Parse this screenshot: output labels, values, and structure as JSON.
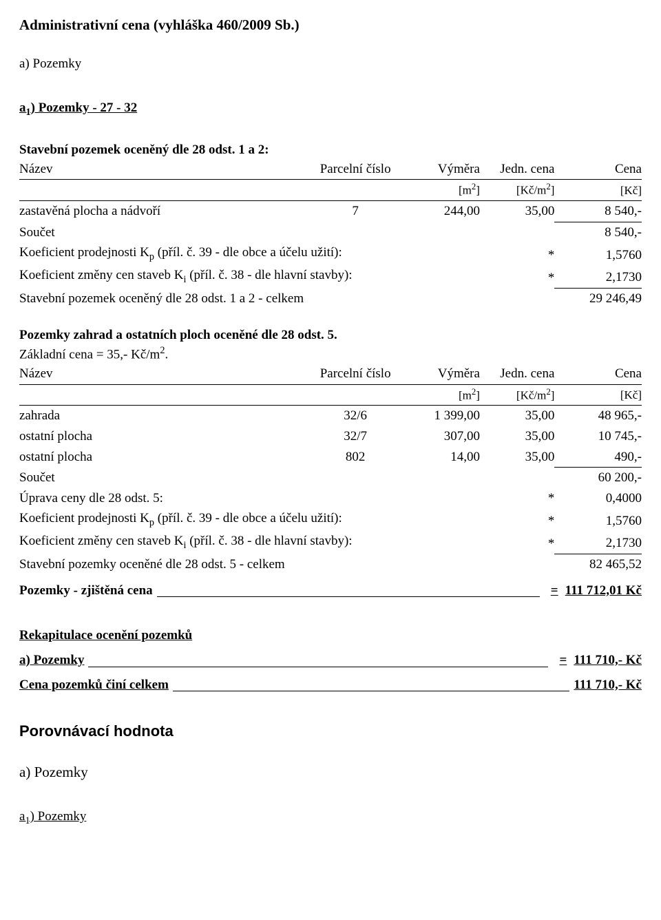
{
  "title": "Administrativní cena (vyhláška 460/2009 Sb.)",
  "section_a": "a) Pozemky",
  "a1_heading_prefix": "a",
  "a1_heading_sub": "1",
  "a1_heading_rest": ") Pozemky   - 27 - 32",
  "p1": {
    "title": "Stavební pozemek oceněný dle 28 odst. 1 a 2:",
    "head": {
      "name": "Název",
      "parcel": "Parcelní číslo",
      "vymera": "Výměra",
      "jedn": "Jedn. cena",
      "cena": "Cena",
      "m2": "[m2]",
      "kcm2": "[Kč/m2]",
      "kc": "[Kč]"
    },
    "rows": [
      {
        "name": "zastavěná plocha a nádvoří",
        "parcel": "7",
        "m2": "244,00",
        "jc": "35,00",
        "cena": "8 540,-"
      }
    ],
    "soucet_label": "Součet",
    "soucet_val": "8 540,-",
    "kp_label_a": "Koeficient prodejnosti K",
    "kp_sub": "p",
    "kp_label_b": " (příl. č. 39 - dle obce a účelu užití):",
    "kp_star": "*",
    "kp_val": "1,5760",
    "ki_label_a": "Koeficient změny cen staveb K",
    "ki_sub": "i",
    "ki_label_b": " (příl. č. 38 - dle hlavní stavby):",
    "ki_star": "*",
    "ki_val": "2,1730",
    "celkem_label": "Stavební pozemek oceněný dle 28 odst. 1 a 2 - celkem",
    "celkem_val": "29 246,49"
  },
  "p2": {
    "title": "Pozemky zahrad a ostatních ploch oceněné dle 28 odst. 5.",
    "base_price": "Základní cena = 35,- Kč/m",
    "base_price_sup": "2",
    "base_price_dot": ".",
    "head": {
      "name": "Název",
      "parcel": "Parcelní číslo",
      "vymera": "Výměra",
      "jedn": "Jedn. cena",
      "cena": "Cena",
      "m2": "[m2]",
      "kcm2": "[Kč/m2]",
      "kc": "[Kč]"
    },
    "rows": [
      {
        "name": "zahrada",
        "parcel": "32/6",
        "m2": "1 399,00",
        "jc": "35,00",
        "cena": "48 965,-"
      },
      {
        "name": "ostatní plocha",
        "parcel": "32/7",
        "m2": "307,00",
        "jc": "35,00",
        "cena": "10 745,-"
      },
      {
        "name": "ostatní plocha",
        "parcel": "802",
        "m2": "14,00",
        "jc": "35,00",
        "cena": "490,-"
      }
    ],
    "soucet_label": "Součet",
    "soucet_val": "60 200,-",
    "uprava_label": "Úprava ceny dle 28 odst. 5:",
    "uprava_star": "*",
    "uprava_val": "0,4000",
    "kp_label_a": "Koeficient prodejnosti K",
    "kp_sub": "p",
    "kp_label_b": " (příl. č. 39 - dle obce a účelu užití):",
    "kp_star": "*",
    "kp_val": "1,5760",
    "ki_label_a": "Koeficient změny cen staveb K",
    "ki_sub": "i",
    "ki_label_b": " (příl. č. 38 - dle hlavní stavby):",
    "ki_star": "*",
    "ki_val": "2,1730",
    "celkem_label": "Stavební pozemky oceněné dle 28 odst. 5 - celkem",
    "celkem_val": "82 465,52"
  },
  "total": {
    "label": "Pozemky - zjištěná cena",
    "eq": "=",
    "val": "111 712,01 Kč"
  },
  "rekap": {
    "title": "Rekapitulace ocenění pozemků",
    "row_a_label": " a) Pozemky",
    "row_a_eq": "=",
    "row_a_val": "111 710,- Kč",
    "row_b_label": "Cena pozemků činí celkem",
    "row_b_val": "111 710,- Kč"
  },
  "porovnavaci": "Porovnávací hodnota",
  "a1b_heading_prefix": "a",
  "a1b_heading_sub": "1",
  "a1b_heading_rest": ") Pozemky"
}
